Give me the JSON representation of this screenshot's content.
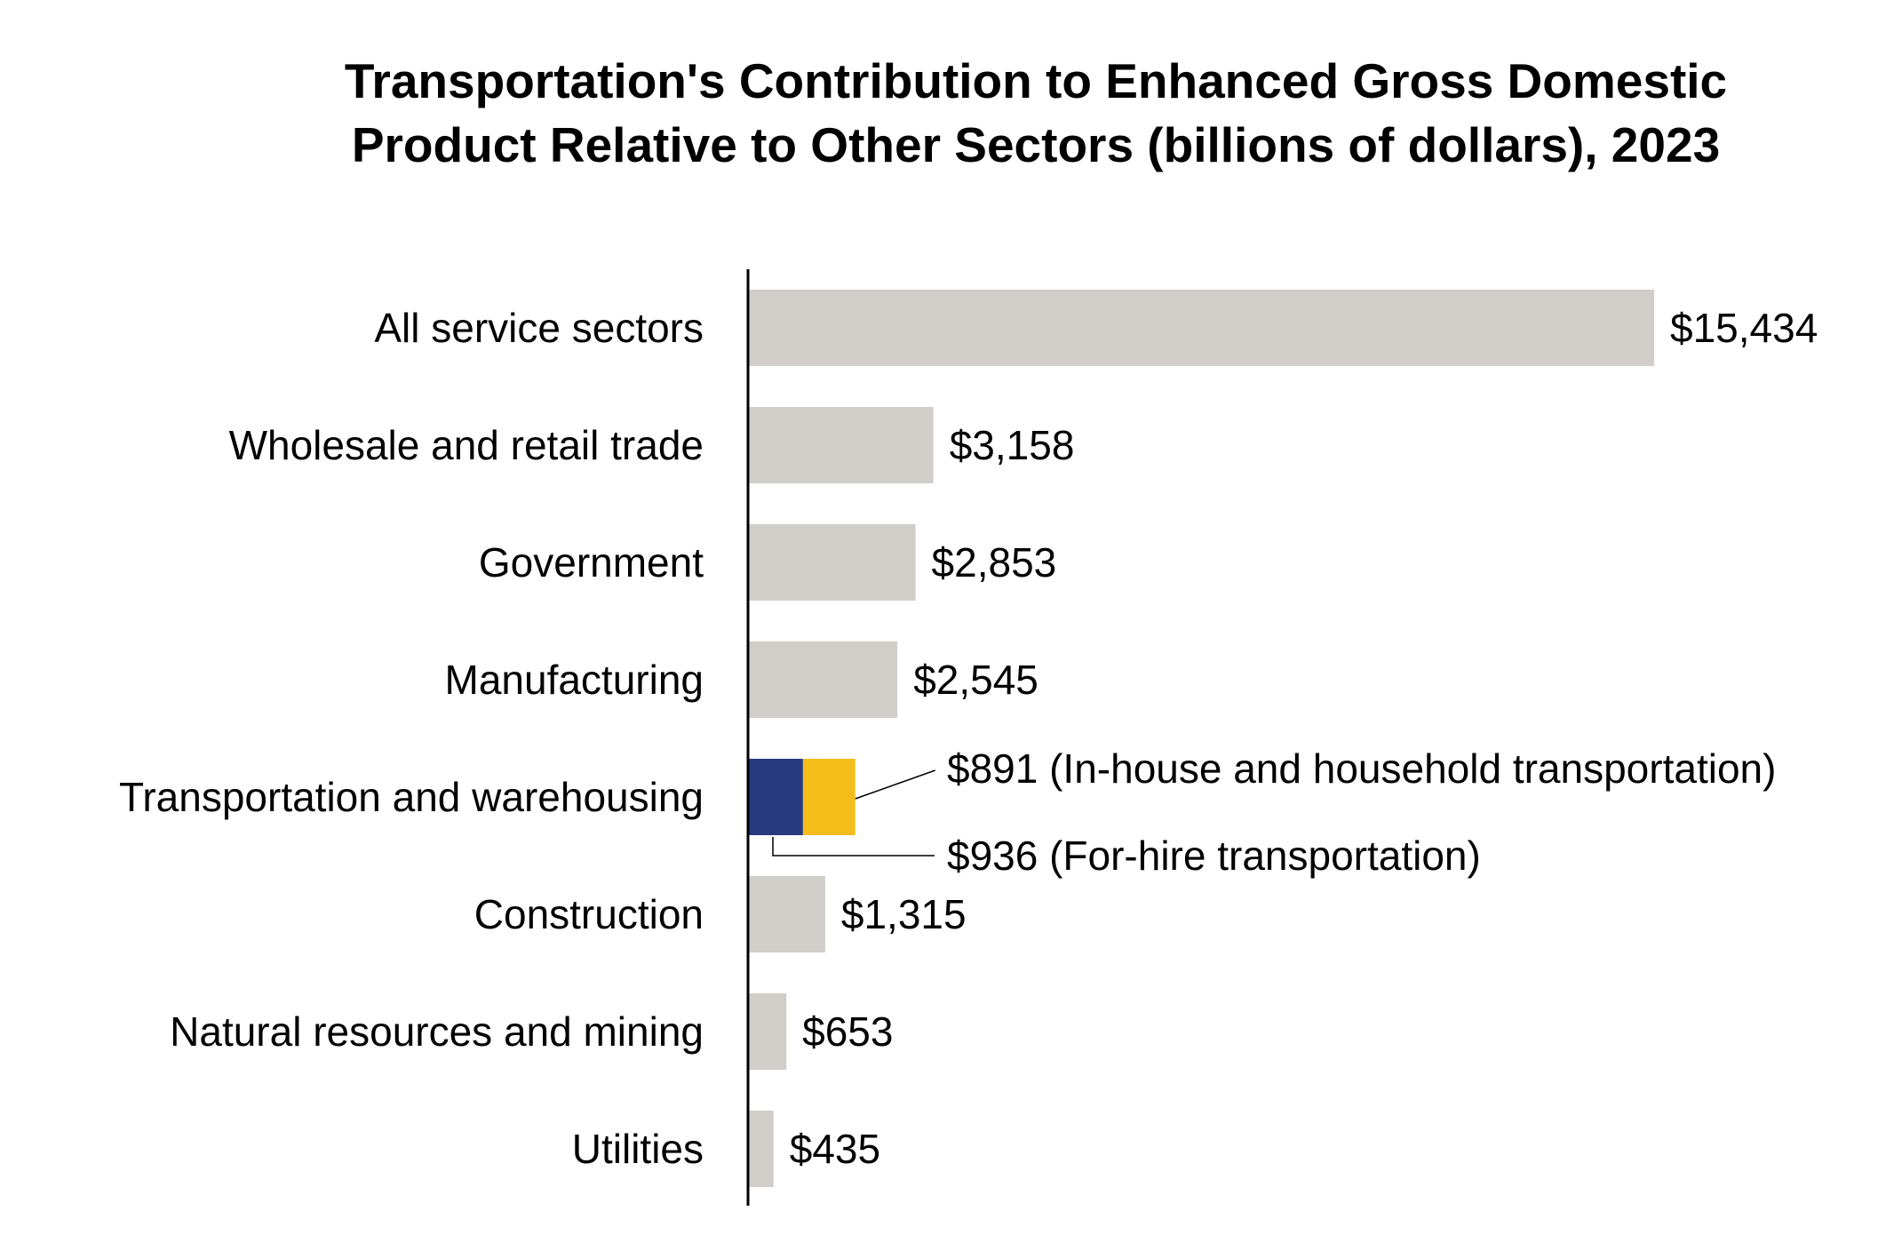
{
  "chart_data": {
    "type": "bar",
    "orientation": "horizontal",
    "title_lines": [
      "Transportation's Contribution to Enhanced Gross Domestic",
      "Product Relative to Other Sectors (billions of dollars), 2023"
    ],
    "categories": [
      "All service sectors",
      "Wholesale and retail trade",
      "Government",
      "Manufacturing",
      "Transportation and warehousing",
      "Construction",
      "Natural resources and mining",
      "Utilities"
    ],
    "values": [
      15434,
      3158,
      2853,
      2545,
      1827,
      1315,
      653,
      435
    ],
    "value_labels": [
      "$15,434",
      "$3,158",
      "$2,853",
      "$2,545",
      "",
      "$1,315",
      "$653",
      "$435"
    ],
    "stacked_category": "Transportation and warehousing",
    "stacked_segments": [
      {
        "name": "For-hire transportation",
        "value": 936,
        "label": "$936 (For-hire transportation)",
        "color": "#263a7d"
      },
      {
        "name": "In-house and household transportation",
        "value": 891,
        "label": "$891 (In-house and household transportation)",
        "color": "#f4bd19"
      }
    ],
    "bar_color": "#d1cdc9",
    "xlim": [
      0,
      15434
    ],
    "axis_color": "#000000"
  }
}
